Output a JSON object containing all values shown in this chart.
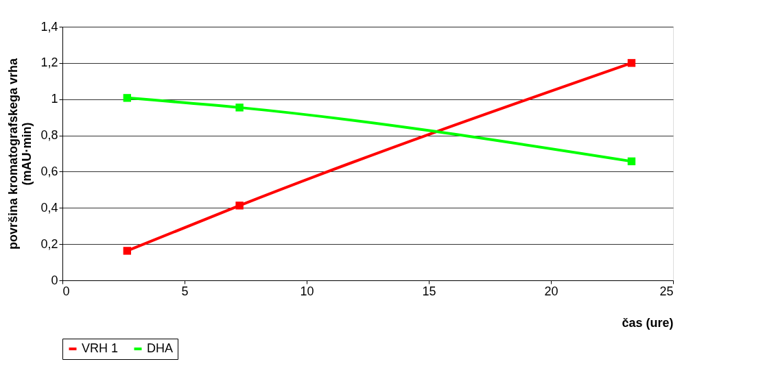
{
  "chart_data": {
    "type": "line",
    "xlabel": "čas (ure)",
    "ylabel": "površina kromatografskega vrha\n(mAU·min)",
    "xlim": [
      0,
      25
    ],
    "xticks": [
      0,
      5,
      10,
      15,
      20,
      25
    ],
    "ylim": [
      0,
      1.4
    ],
    "yticks": [
      {
        "value": 0,
        "label": "0"
      },
      {
        "value": 0.2,
        "label": "0,2"
      },
      {
        "value": 0.4,
        "label": "0,4"
      },
      {
        "value": 0.6,
        "label": "0,6"
      },
      {
        "value": 0.8,
        "label": "0,8"
      },
      {
        "value": 1,
        "label": "1"
      },
      {
        "value": 1.2,
        "label": "1,2"
      },
      {
        "value": 1.4,
        "label": "1,4"
      }
    ],
    "x": [
      2.65,
      7.25,
      23.3
    ],
    "series": [
      {
        "name": "VRH 1",
        "color": "#ff0000",
        "values": [
          0.163,
          0.413,
          1.2
        ]
      },
      {
        "name": "DHA",
        "color": "#00ff00",
        "values": [
          1.007,
          0.954,
          0.657
        ]
      }
    ],
    "grid": "y",
    "legend": "bottom left",
    "marker": "square",
    "line_style": "solid"
  }
}
